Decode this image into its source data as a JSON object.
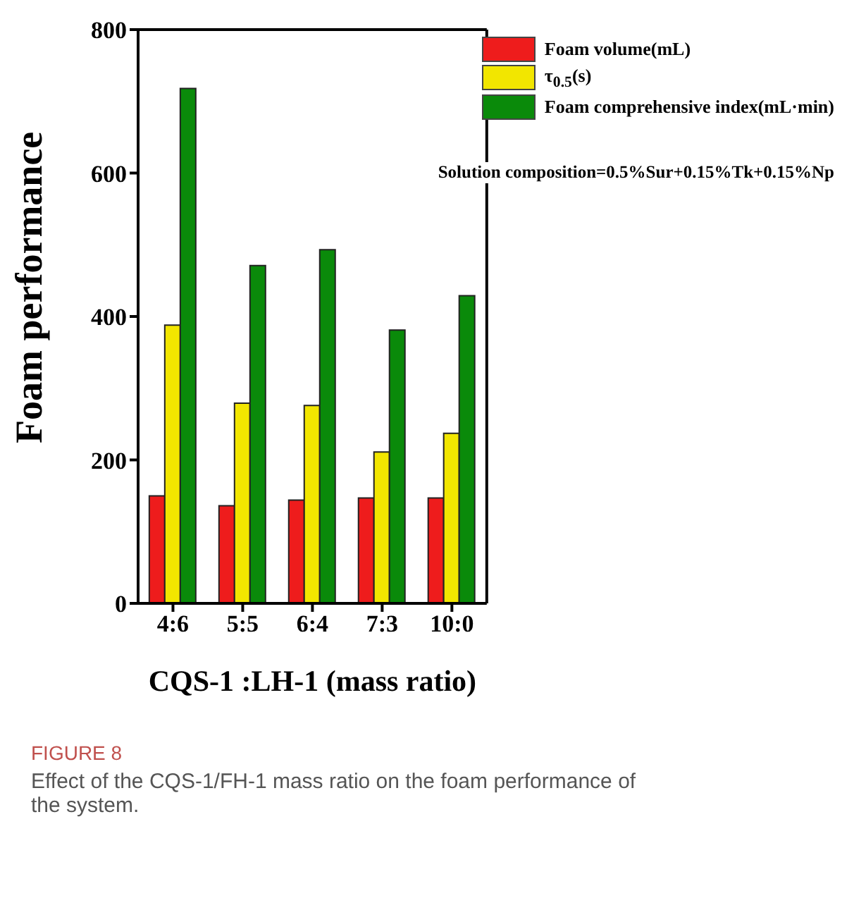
{
  "chart_data": {
    "type": "bar",
    "xlabel": "CQS-1 :LH-1 (mass ratio)",
    "ylabel": "Foam performance",
    "categories": [
      "4:6",
      "5:5",
      "6:4",
      "7:3",
      "10:0"
    ],
    "series": [
      {
        "name": "Foam volume(mL)",
        "color": "#ee1c1c",
        "values": [
          150,
          136,
          144,
          147,
          147
        ]
      },
      {
        "name": "τ$_{0.5}$(s)",
        "color": "#f2e600",
        "values": [
          388,
          279,
          276,
          211,
          237
        ]
      },
      {
        "name": "Foam comprehensive index(mL·min)",
        "color": "#0a8a0a",
        "values": [
          718,
          471,
          493,
          381,
          429
        ]
      }
    ],
    "ylim": [
      0,
      800
    ],
    "yticks": [
      0,
      200,
      400,
      600,
      800
    ],
    "grid": false,
    "legend": "top right",
    "annotations": [
      "Solution composition=0.5%Sur+0.15%Tk+0.15%Np",
      "FIGURE 8",
      "Effect of the CQS-1/FH-1 mass ratio on the foam performance of the system."
    ]
  }
}
